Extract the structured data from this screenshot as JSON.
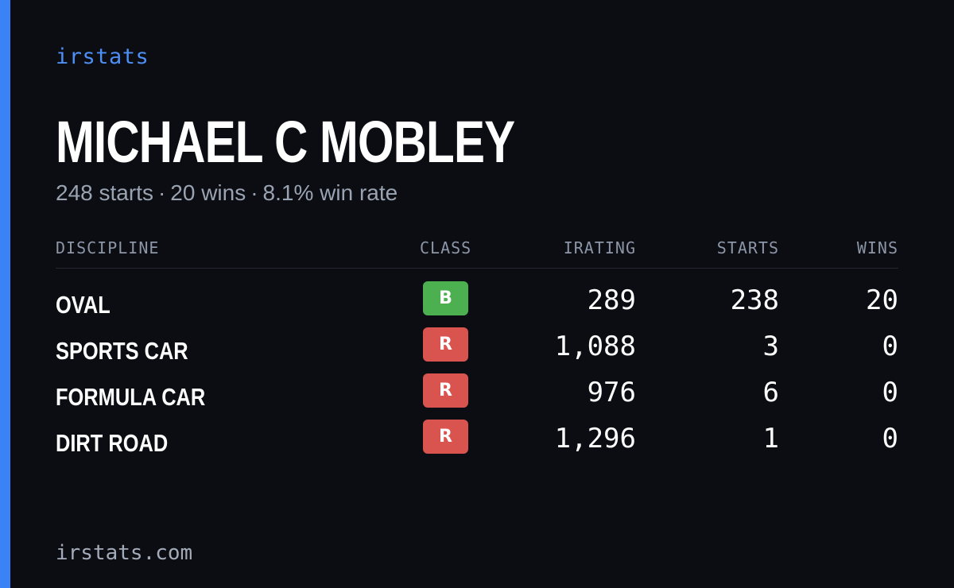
{
  "brand": "irstats",
  "driver": {
    "name": "MICHAEL C MOBLEY",
    "starts_text": "248 starts",
    "wins_text": "20 wins",
    "winrate_text": "8.1% win rate",
    "separator": "·"
  },
  "table": {
    "headers": {
      "discipline": "DISCIPLINE",
      "class": "CLASS",
      "irating": "IRATING",
      "starts": "STARTS",
      "wins": "WINS"
    },
    "rows": [
      {
        "discipline": "OVAL",
        "class": "B",
        "class_color": "#4caf50",
        "irating": "289",
        "starts": "238",
        "wins": "20"
      },
      {
        "discipline": "SPORTS CAR",
        "class": "R",
        "class_color": "#d9534f",
        "irating": "1,088",
        "starts": "3",
        "wins": "0"
      },
      {
        "discipline": "FORMULA CAR",
        "class": "R",
        "class_color": "#d9534f",
        "irating": "976",
        "starts": "6",
        "wins": "0"
      },
      {
        "discipline": "DIRT ROAD",
        "class": "R",
        "class_color": "#d9534f",
        "irating": "1,296",
        "starts": "1",
        "wins": "0"
      }
    ]
  },
  "footer": {
    "domain": "irstats.com"
  },
  "colors": {
    "accent": "#3b82f6",
    "background": "#0b0d13"
  }
}
